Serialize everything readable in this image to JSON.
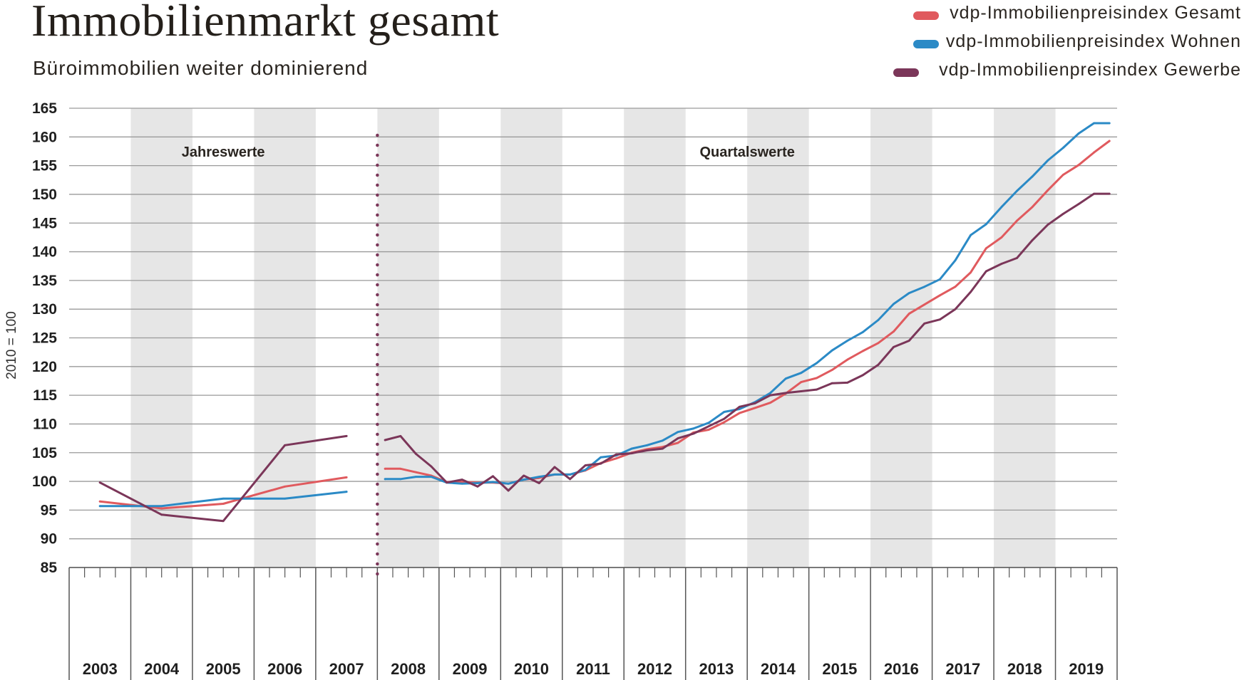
{
  "chart_data": {
    "type": "line",
    "title": "Immobilienmarkt gesamt",
    "subtitle": "Büroimmobilien weiter dominierend",
    "ylabel": "2010 = 100",
    "ylim": [
      85,
      165
    ],
    "yticks": [
      165,
      160,
      155,
      150,
      145,
      140,
      135,
      130,
      125,
      120,
      115,
      110,
      105,
      100,
      95,
      90,
      85
    ],
    "years": [
      "2003",
      "2004",
      "2005",
      "2006",
      "2007",
      "2008",
      "2009",
      "2010",
      "2011",
      "2012",
      "2013",
      "2014",
      "2015",
      "2016",
      "2017",
      "2018",
      "2019"
    ],
    "annotations": {
      "annual": "Jahreswerte",
      "quarterly": "Quartalswerte"
    },
    "grid": true,
    "legend_position": "top-right",
    "colors": {
      "gesamt": "#e05a5e",
      "wohnen": "#2b8ac6",
      "gewerbe": "#7b3659",
      "band": "#e6e6e6",
      "grid": "#9a9a9a"
    },
    "annual_x": [
      "2003",
      "2004",
      "2005",
      "2006",
      "2007"
    ],
    "quarterly_x": [
      "2008-Q1",
      "2008-Q2",
      "2008-Q3",
      "2008-Q4",
      "2009-Q1",
      "2009-Q2",
      "2009-Q3",
      "2009-Q4",
      "2010-Q1",
      "2010-Q2",
      "2010-Q3",
      "2010-Q4",
      "2011-Q1",
      "2011-Q2",
      "2011-Q3",
      "2011-Q4",
      "2012-Q1",
      "2012-Q2",
      "2012-Q3",
      "2012-Q4",
      "2013-Q1",
      "2013-Q2",
      "2013-Q3",
      "2013-Q4",
      "2014-Q1",
      "2014-Q2",
      "2014-Q3",
      "2014-Q4",
      "2015-Q1",
      "2015-Q2",
      "2015-Q3",
      "2015-Q4",
      "2016-Q1",
      "2016-Q2",
      "2016-Q3",
      "2016-Q4",
      "2017-Q1",
      "2017-Q2",
      "2017-Q3",
      "2017-Q4",
      "2018-Q1",
      "2018-Q2",
      "2018-Q3",
      "2018-Q4",
      "2019-Q1",
      "2019-Q2",
      "2019-Q3",
      "2019-Q4"
    ],
    "series": [
      {
        "name": "vdp-Immobilienpreisindex Gesamt",
        "key": "gesamt",
        "annual": [
          96.5,
          95.3,
          96.1,
          99.1,
          100.7
        ],
        "quarterly": [
          102.2,
          102.2,
          101.6,
          101.0,
          99.9,
          99.9,
          99.8,
          99.8,
          99.6,
          100.3,
          100.6,
          101.2,
          101.2,
          101.9,
          103.2,
          104.0,
          105.0,
          105.6,
          106.0,
          106.7,
          108.5,
          109.0,
          110.3,
          111.9,
          112.8,
          113.7,
          115.3,
          117.3,
          118.0,
          119.4,
          121.2,
          122.7,
          124.1,
          126.1,
          129.2,
          130.8,
          132.4,
          133.9,
          136.4,
          140.6,
          142.5,
          145.4,
          147.8,
          150.7,
          153.4,
          155.1,
          157.3,
          159.3
        ]
      },
      {
        "name": "vdp-Immobilienpreisindex Wohnen",
        "key": "wohnen",
        "annual": [
          95.7,
          95.7,
          97.0,
          97.0,
          98.2
        ],
        "quarterly": [
          100.4,
          100.4,
          100.8,
          100.8,
          99.8,
          99.6,
          99.7,
          99.9,
          99.6,
          100.3,
          100.8,
          101.2,
          101.2,
          102.0,
          104.2,
          104.5,
          105.7,
          106.3,
          107.1,
          108.6,
          109.2,
          110.2,
          112.1,
          112.6,
          113.8,
          115.4,
          117.9,
          118.9,
          120.6,
          122.8,
          124.5,
          126.0,
          128.1,
          130.9,
          132.8,
          133.9,
          135.2,
          138.5,
          142.9,
          144.8,
          147.8,
          150.6,
          153.1,
          155.9,
          158.1,
          160.6,
          162.4,
          162.4
        ]
      },
      {
        "name": "vdp-Immobilienpreisindex Gewerbe",
        "key": "gewerbe",
        "annual": [
          99.8,
          94.2,
          93.1,
          106.3,
          107.9
        ],
        "quarterly": [
          107.2,
          107.9,
          104.8,
          102.6,
          99.8,
          100.3,
          99.1,
          100.9,
          98.4,
          101.0,
          99.7,
          102.5,
          100.4,
          102.8,
          103.1,
          104.7,
          104.9,
          105.4,
          105.7,
          107.5,
          108.3,
          109.6,
          110.9,
          113.0,
          113.6,
          115.0,
          115.4,
          115.7,
          116.0,
          117.1,
          117.2,
          118.5,
          120.3,
          123.4,
          124.5,
          127.5,
          128.2,
          130.0,
          133.0,
          136.6,
          137.9,
          138.9,
          142.0,
          144.7,
          146.6,
          148.3,
          150.1,
          150.1
        ]
      }
    ]
  }
}
